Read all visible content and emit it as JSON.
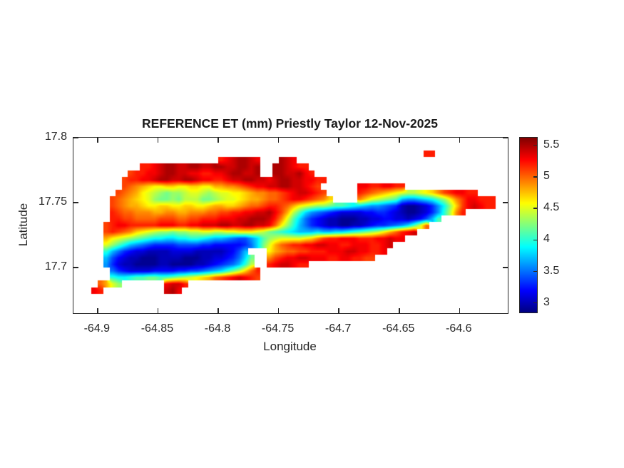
{
  "title": "REFERENCE ET (mm) Priestly Taylor 12-Nov-2025",
  "axes": {
    "xlabel": "Longitude",
    "ylabel": "Latitude",
    "xlim": [
      -64.92,
      -64.56
    ],
    "ylim": [
      17.665,
      17.8
    ],
    "xticks": [
      -64.9,
      -64.85,
      -64.8,
      -64.75,
      -64.7,
      -64.65,
      -64.6
    ],
    "xtick_labels": [
      "-64.9",
      "-64.85",
      "-64.8",
      "-64.75",
      "-64.7",
      "-64.65",
      "-64.6"
    ],
    "yticks": [
      17.7,
      17.75,
      17.8
    ],
    "ytick_labels": [
      "17.7",
      "17.75",
      "17.8"
    ],
    "axis_color": "#262626"
  },
  "colorbar": {
    "colormap": "jet",
    "vmin": 2.85,
    "vmax": 5.62,
    "ticks": [
      3,
      3.5,
      4,
      4.5,
      5,
      5.5
    ],
    "tick_labels": [
      "3",
      "3.5",
      "4",
      "4.5",
      "5",
      "5.5"
    ]
  },
  "chart_data": {
    "type": "heatmap",
    "title": "REFERENCE ET (mm) Priestly Taylor 12-Nov-2025",
    "xlabel": "Longitude",
    "ylabel": "Latitude",
    "legend_position": "right-colorbar",
    "grid_lines": false,
    "colormap": "jet",
    "caxis": [
      2.85,
      5.62
    ],
    "xlim": [
      -64.92,
      -64.56
    ],
    "ylim": [
      17.665,
      17.8
    ],
    "grid": {
      "ncols": 72,
      "nrows": 27,
      "lon_min": -64.92,
      "lon_max": -64.56,
      "lat_min": 17.665,
      "lat_max": 17.8,
      "ocean_char": ".",
      "value_chars": "0123456789abcdefghijklmnopqr",
      "value_start": 2.9,
      "value_step": 0.1,
      "rows": [
        "........................................................................",
        "........................................................................",
        "..........................................................nn............",
        "........................nopqqpo...qpo...................................",
        "...........nnopqqppqqppqqppqqpq..qqponn.................................",
        ".........mnnoopqqppoonnoopqqppq..qqppqon................................",
        "........mnnoopqqppqqpoonnoppqqppopqqppoonn..............................",
        "........mlkjihhiihhiihhjjkklmnooppqqpponm......oonnoonn.................",
        ".......mlkjhgfedeefggfefgghhijkkllmnopponm.....nmlkjihgffghikmnoonn.....",
        "......mlkjihgeddedfffddefgghijjkllmnoonmlki....kigfedc87789acehkmoonnn..",
        "......mlkjjihhiihhiihhijjiijkllmnnmljhgfeedccba98776541001247aeimoponn..",
        "......nmllkkkjjkkjjkkkllmmnnooppqomjfc97654322223344321001247bfkn.......",
        "......nnmmllllmmmllmmnnnoooppqqqpnkgc96432110001122332212358c...........",
        ".....mnoonnnnnooonnoopppqqppqqppolheb8643211001123445679cgl.............",
        ".....mnmlkihgfeedeeffggffgghhhgfdcba988898899abcdefhjlnop...............",
        ".....jhgfedcbaa99aabba988765579cefgggghikmnnooonnnoopoo.................",
        ".....geca8765444455554433333469dgjlmnnooppoonnooonnop...................",
        ".....b86432211112222111112358...hjkllmmnnnoooppoonno....................",
        ".....853211000111100011223469d..kmnooppooonnoonnmm......................",
        ".....74211000011000011234568bf..nopponn.................................",
        "......6432222333344556789bdfiln.........................................",
        "......baabccddccdefghijlmnoponm.........................................",
        "....ljge.......oppn.....................................................",
        "...on..........pqo......................................................",
        "........................................................................",
        "........................................................................",
        "........................................................................"
      ]
    }
  }
}
